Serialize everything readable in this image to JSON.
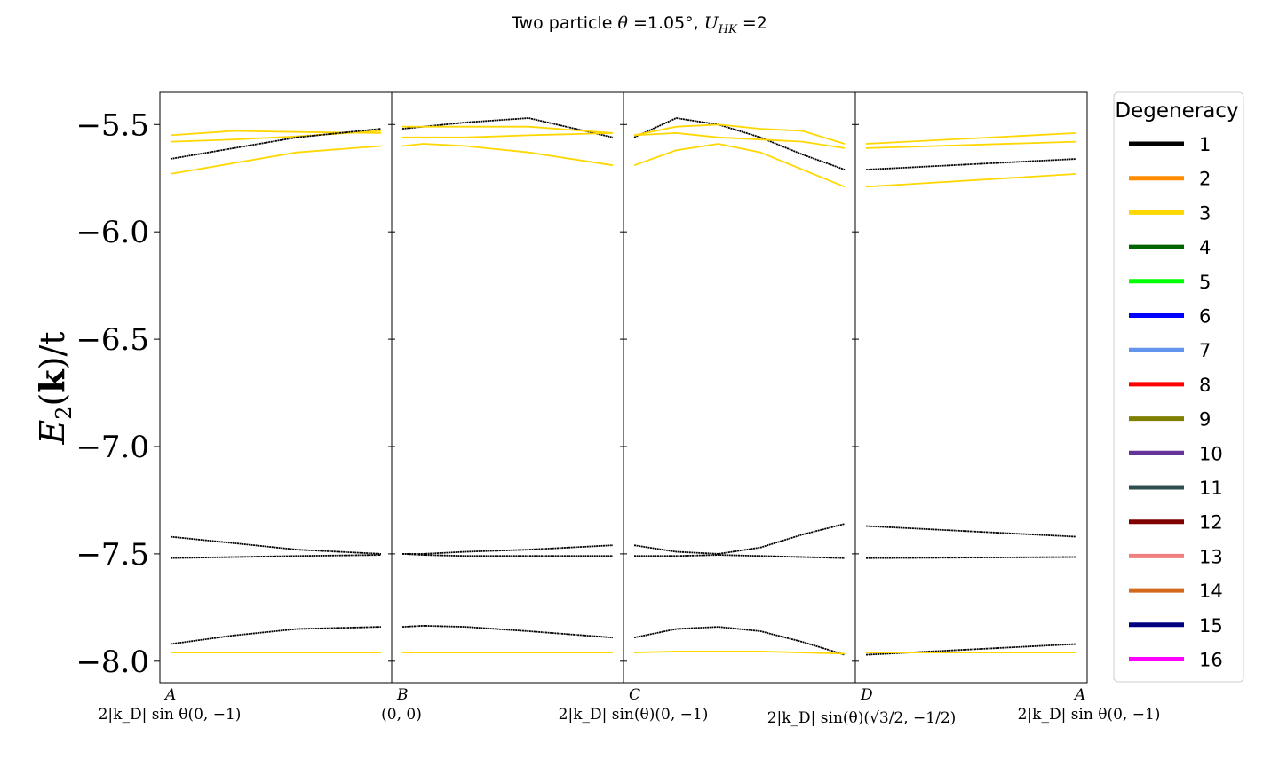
{
  "chart_data": {
    "type": "line",
    "title": "Two particle θ =1.05°, U_HK =2",
    "title_parts": {
      "prefix": "Two particle ",
      "theta": "θ",
      "mid": " =1.05°, ",
      "u": "U",
      "u_sub": "HK",
      "suffix": " =2"
    },
    "ylabel": "E₂(k)/t",
    "ylabel_parts": {
      "e": "E",
      "sub": "2",
      "paren_open": "(",
      "k": "k",
      "rest": ")/t"
    },
    "ylim": [
      -8.1,
      -5.35
    ],
    "yticks": [
      -5.5,
      -6.0,
      -6.5,
      -7.0,
      -7.5,
      -8.0
    ],
    "ytick_labels": [
      "−5.5",
      "−6.0",
      "−6.5",
      "−7.0",
      "−7.5",
      "−8.0"
    ],
    "kpoints": [
      {
        "name": "A",
        "coord": "2|k_D| sin θ(0, −1)"
      },
      {
        "name": "B",
        "coord": "(0, 0)"
      },
      {
        "name": "C",
        "coord": "2|k_D| sin(θ)(0, −1)"
      },
      {
        "name": "D",
        "coord": "2|k_D| sin(θ)(√3/2, −1/2)"
      },
      {
        "name": "A",
        "coord": "2|k_D| sin θ(0, −1)"
      }
    ],
    "grid": false,
    "legend": {
      "title": "Degeneracy",
      "placement": "right-outside",
      "entries": [
        {
          "label": "1",
          "color": "#000000"
        },
        {
          "label": "2",
          "color": "#ff8c00"
        },
        {
          "label": "3",
          "color": "#ffd700"
        },
        {
          "label": "4",
          "color": "#006400"
        },
        {
          "label": "5",
          "color": "#00ff00"
        },
        {
          "label": "6",
          "color": "#0000ff"
        },
        {
          "label": "7",
          "color": "#6495ed"
        },
        {
          "label": "8",
          "color": "#ff0000"
        },
        {
          "label": "9",
          "color": "#808000"
        },
        {
          "label": "10",
          "color": "#663399"
        },
        {
          "label": "11",
          "color": "#2f4f4f"
        },
        {
          "label": "12",
          "color": "#800000"
        },
        {
          "label": "13",
          "color": "#f08080"
        },
        {
          "label": "14",
          "color": "#d2691e"
        },
        {
          "label": "15",
          "color": "#000080"
        },
        {
          "label": "16",
          "color": "#ff00ff"
        }
      ]
    },
    "panels": [
      {
        "x": [
          0,
          0.3,
          0.6,
          1
        ],
        "series": [
          {
            "degeneracy": 3,
            "color": "#ffd700",
            "values": [
              -5.55,
              -5.53,
              -5.535,
              -5.54
            ]
          },
          {
            "degeneracy": 3,
            "color": "#ffd700",
            "values": [
              -5.58,
              -5.57,
              -5.555,
              -5.53
            ]
          },
          {
            "degeneracy": 1,
            "color": "#000000",
            "values": [
              -5.66,
              -5.61,
              -5.56,
              -5.52
            ]
          },
          {
            "degeneracy": 3,
            "color": "#ffd700",
            "values": [
              -5.73,
              -5.68,
              -5.63,
              -5.6
            ]
          },
          {
            "degeneracy": 1,
            "color": "#000000",
            "values": [
              -7.42,
              -7.45,
              -7.48,
              -7.5
            ]
          },
          {
            "degeneracy": 1,
            "color": "#000000",
            "values": [
              -7.52,
              -7.515,
              -7.51,
              -7.505
            ]
          },
          {
            "degeneracy": 1,
            "color": "#000000",
            "values": [
              -7.92,
              -7.88,
              -7.85,
              -7.84
            ]
          },
          {
            "degeneracy": 3,
            "color": "#ffd700",
            "values": [
              -7.96,
              -7.96,
              -7.96,
              -7.96
            ]
          }
        ]
      },
      {
        "x": [
          0,
          0.1,
          0.3,
          0.6,
          1
        ],
        "series": [
          {
            "degeneracy": 1,
            "color": "#000000",
            "values": [
              -5.52,
              -5.51,
              -5.49,
              -5.47,
              -5.56
            ]
          },
          {
            "degeneracy": 3,
            "color": "#ffd700",
            "values": [
              -5.51,
              -5.51,
              -5.51,
              -5.51,
              -5.54
            ]
          },
          {
            "degeneracy": 3,
            "color": "#ffd700",
            "values": [
              -5.56,
              -5.56,
              -5.56,
              -5.55,
              -5.54
            ]
          },
          {
            "degeneracy": 3,
            "color": "#ffd700",
            "values": [
              -5.6,
              -5.59,
              -5.6,
              -5.63,
              -5.69
            ]
          },
          {
            "degeneracy": 1,
            "color": "#000000",
            "values": [
              -7.5,
              -7.5,
              -7.49,
              -7.48,
              -7.46
            ]
          },
          {
            "degeneracy": 1,
            "color": "#000000",
            "values": [
              -7.5,
              -7.505,
              -7.51,
              -7.51,
              -7.51
            ]
          },
          {
            "degeneracy": 1,
            "color": "#000000",
            "values": [
              -7.84,
              -7.835,
              -7.84,
              -7.86,
              -7.89
            ]
          },
          {
            "degeneracy": 3,
            "color": "#ffd700",
            "values": [
              -7.96,
              -7.96,
              -7.96,
              -7.96,
              -7.96
            ]
          }
        ]
      },
      {
        "x": [
          0,
          0.2,
          0.4,
          0.6,
          0.8,
          1
        ],
        "series": [
          {
            "degeneracy": 1,
            "color": "#000000",
            "values": [
              -5.56,
              -5.47,
              -5.5,
              -5.56,
              -5.64,
              -5.71
            ]
          },
          {
            "degeneracy": 3,
            "color": "#ffd700",
            "values": [
              -5.55,
              -5.51,
              -5.5,
              -5.52,
              -5.53,
              -5.59
            ]
          },
          {
            "degeneracy": 3,
            "color": "#ffd700",
            "values": [
              -5.55,
              -5.54,
              -5.56,
              -5.57,
              -5.58,
              -5.61
            ]
          },
          {
            "degeneracy": 3,
            "color": "#ffd700",
            "values": [
              -5.69,
              -5.62,
              -5.59,
              -5.63,
              -5.71,
              -5.79
            ]
          },
          {
            "degeneracy": 1,
            "color": "#000000",
            "values": [
              -7.46,
              -7.49,
              -7.5,
              -7.47,
              -7.41,
              -7.36
            ]
          },
          {
            "degeneracy": 1,
            "color": "#000000",
            "values": [
              -7.51,
              -7.51,
              -7.505,
              -7.51,
              -7.515,
              -7.52
            ]
          },
          {
            "degeneracy": 1,
            "color": "#000000",
            "values": [
              -7.89,
              -7.85,
              -7.84,
              -7.86,
              -7.91,
              -7.97
            ]
          },
          {
            "degeneracy": 3,
            "color": "#ffd700",
            "values": [
              -7.96,
              -7.955,
              -7.955,
              -7.955,
              -7.96,
              -7.965
            ]
          }
        ]
      },
      {
        "x": [
          0,
          1
        ],
        "series": [
          {
            "degeneracy": 3,
            "color": "#ffd700",
            "values": [
              -5.59,
              -5.54
            ]
          },
          {
            "degeneracy": 3,
            "color": "#ffd700",
            "values": [
              -5.61,
              -5.58
            ]
          },
          {
            "degeneracy": 1,
            "color": "#000000",
            "values": [
              -5.71,
              -5.66
            ]
          },
          {
            "degeneracy": 3,
            "color": "#ffd700",
            "values": [
              -5.79,
              -5.73
            ]
          },
          {
            "degeneracy": 1,
            "color": "#000000",
            "values": [
              -7.37,
              -7.42
            ]
          },
          {
            "degeneracy": 1,
            "color": "#000000",
            "values": [
              -7.52,
              -7.515
            ]
          },
          {
            "degeneracy": 1,
            "color": "#000000",
            "values": [
              -7.97,
              -7.92
            ]
          },
          {
            "degeneracy": 3,
            "color": "#ffd700",
            "values": [
              -7.96,
              -7.96
            ]
          }
        ]
      }
    ]
  }
}
